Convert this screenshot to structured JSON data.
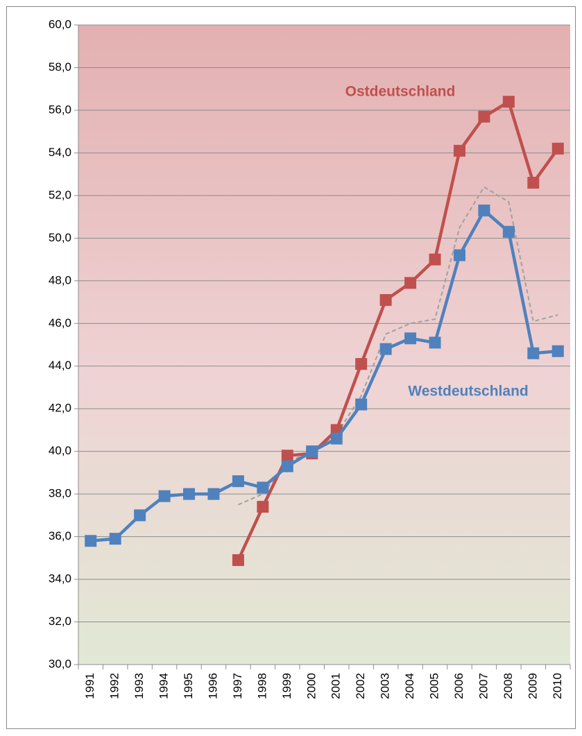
{
  "chart_data": {
    "type": "line",
    "annotations": [
      "Ostdeutschland",
      "Westdeutschland"
    ],
    "categories": [
      "1991",
      "1992",
      "1993",
      "1994",
      "1995",
      "1996",
      "1997",
      "1998",
      "1999",
      "2000",
      "2001",
      "2002",
      "2003",
      "2004",
      "2005",
      "2006",
      "2007",
      "2008",
      "2009",
      "2010"
    ],
    "series": [
      {
        "color": "#c0504d",
        "values": [
          null,
          null,
          null,
          null,
          null,
          null,
          34.9,
          37.4,
          39.8,
          39.9,
          41.0,
          44.1,
          47.1,
          47.9,
          49.0,
          54.1,
          55.7,
          56.4,
          52.6,
          54.2
        ]
      },
      {
        "color": "#4f81bd",
        "values": [
          35.8,
          35.9,
          37.0,
          37.9,
          38.0,
          38.0,
          38.6,
          38.3,
          39.3,
          40.0,
          40.6,
          42.2,
          44.8,
          45.3,
          45.1,
          49.2,
          51.3,
          50.3,
          44.6,
          44.7
        ]
      },
      {
        "color": "#a0a0a0",
        "dashed": true,
        "markers": false,
        "values": [
          null,
          null,
          null,
          null,
          null,
          null,
          37.5,
          38.0,
          39.5,
          40.0,
          40.8,
          42.6,
          45.5,
          46.0,
          46.2,
          50.5,
          52.4,
          51.7,
          46.1,
          46.4
        ]
      }
    ],
    "ylim": [
      30,
      60
    ],
    "yticks": [
      {
        "value": 30,
        "label": "30,0"
      },
      {
        "value": 32,
        "label": "32,0"
      },
      {
        "value": 34,
        "label": "34,0"
      },
      {
        "value": 36,
        "label": "36,0"
      },
      {
        "value": 38,
        "label": "38,0"
      },
      {
        "value": 40,
        "label": "40,0"
      },
      {
        "value": 42,
        "label": "42,0"
      },
      {
        "value": 44,
        "label": "44,0"
      },
      {
        "value": 46,
        "label": "46,0"
      },
      {
        "value": 48,
        "label": "48,0"
      },
      {
        "value": 50,
        "label": "50,0"
      },
      {
        "value": 52,
        "label": "52,0"
      },
      {
        "value": 54,
        "label": "54,0"
      },
      {
        "value": 56,
        "label": "56,0"
      },
      {
        "value": 58,
        "label": "58,0"
      },
      {
        "value": 60,
        "label": "60,0"
      }
    ],
    "grid": true
  }
}
